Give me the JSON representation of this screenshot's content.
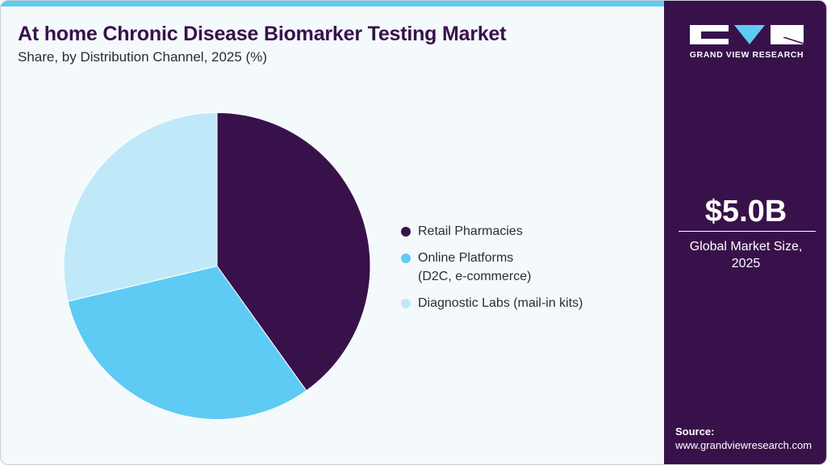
{
  "header": {
    "title": "At home Chronic Disease Biomarker Testing Market",
    "subtitle": "Share, by Distribution Channel, 2025 (%)"
  },
  "legend": [
    {
      "label": "Retail Pharmacies",
      "color": "#38114a"
    },
    {
      "label": "Online Platforms\n(D2C, e-commerce)",
      "color": "#5ecbf5"
    },
    {
      "label": "Diagnostic Labs (mail-in kits)",
      "color": "#bfe9f9"
    }
  ],
  "sidebar": {
    "logo_text": "GRAND VIEW RESEARCH",
    "market_value": "$5.0B",
    "market_caption": "Global Market Size,\n2025",
    "source_label": "Source:",
    "source_url": "www.grandviewresearch.com"
  },
  "colors": {
    "accent": "#5ecbf5",
    "brand": "#38114a",
    "background": "#f4f9fc"
  },
  "chart_data": {
    "type": "pie",
    "title": "At home Chronic Disease Biomarker Testing Market",
    "subtitle": "Share, by Distribution Channel, 2025 (%)",
    "categories": [
      "Retail Pharmacies",
      "Online Platforms (D2C, e-commerce)",
      "Diagnostic Labs (mail-in kits)"
    ],
    "values": [
      40.1,
      31.2,
      28.7
    ],
    "colors": [
      "#38114a",
      "#5ecbf5",
      "#bfe9f9"
    ],
    "start_angle": "12 o'clock, clockwise",
    "legend_position": "right",
    "data_labels": false
  }
}
